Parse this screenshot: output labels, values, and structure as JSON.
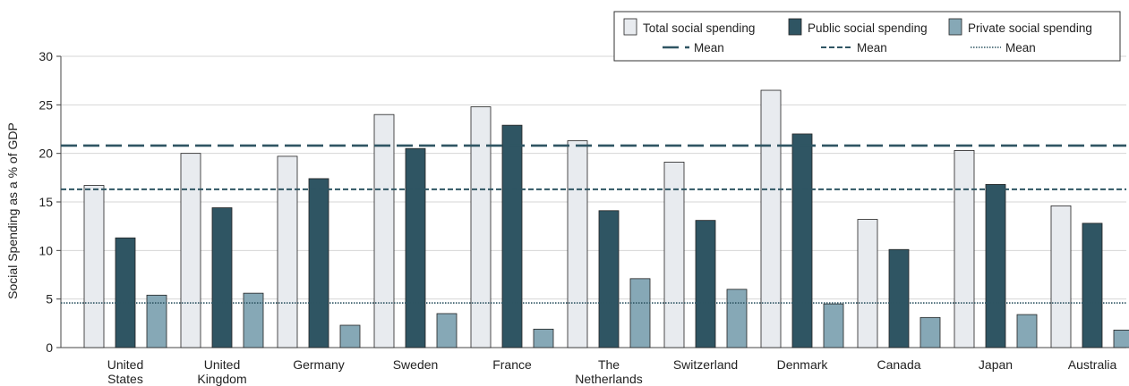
{
  "chart_data": {
    "type": "bar",
    "title": "",
    "xlabel": "",
    "ylabel": "Social Spending as a % of GDP",
    "ylim": [
      0,
      30
    ],
    "yticks": [
      0,
      5,
      10,
      15,
      20,
      25,
      30
    ],
    "grid": true,
    "legend_position": "top-right",
    "categories": [
      [
        "United",
        "States"
      ],
      [
        "United",
        "Kingdom"
      ],
      [
        "Germany"
      ],
      [
        "Sweden"
      ],
      [
        "France"
      ],
      [
        "The",
        "Netherlands"
      ],
      [
        "Switzerland"
      ],
      [
        "Denmark"
      ],
      [
        "Canada"
      ],
      [
        "Japan"
      ],
      [
        "Australia"
      ]
    ],
    "series": [
      {
        "name": "Total social spending",
        "color": "#e8ebef",
        "mean": 20.8,
        "mean_label": "Mean",
        "mean_style": "long-dash",
        "values": [
          16.7,
          20.0,
          19.7,
          24.0,
          24.8,
          21.3,
          19.1,
          26.5,
          13.2,
          20.3,
          14.6
        ]
      },
      {
        "name": "Public social spending",
        "color": "#2f5563",
        "mean": 16.3,
        "mean_label": "Mean",
        "mean_style": "short-dash",
        "values": [
          11.3,
          14.4,
          17.4,
          20.5,
          22.9,
          14.1,
          13.1,
          22.0,
          10.1,
          16.8,
          12.8
        ]
      },
      {
        "name": "Private social spending",
        "color": "#86a8b6",
        "mean": 4.6,
        "mean_label": "Mean",
        "mean_style": "dotted",
        "values": [
          5.4,
          5.6,
          2.3,
          3.5,
          1.9,
          7.1,
          6.0,
          4.5,
          3.1,
          3.4,
          1.8
        ]
      }
    ]
  }
}
